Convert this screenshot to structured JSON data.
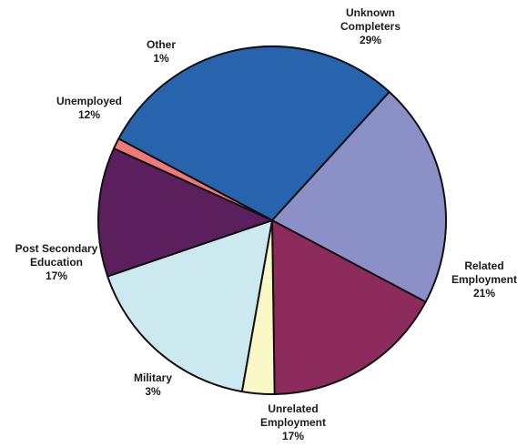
{
  "chart_data": {
    "type": "pie",
    "title": "",
    "slices": [
      {
        "label_lines": [
          "Unknown",
          "Completers"
        ],
        "pct_label": "29%",
        "value": 29,
        "color": "#2863ad"
      },
      {
        "label_lines": [
          "Related",
          "Employment"
        ],
        "pct_label": "21%",
        "value": 21,
        "color": "#8b91c7"
      },
      {
        "label_lines": [
          "Unrelated",
          "Employment"
        ],
        "pct_label": "17%",
        "value": 17,
        "color": "#8e2b5d"
      },
      {
        "label_lines": [
          "Military"
        ],
        "pct_label": "3%",
        "value": 3,
        "color": "#fbf8c8"
      },
      {
        "label_lines": [
          "Post Secondary",
          "Education"
        ],
        "pct_label": "17%",
        "value": 17,
        "color": "#cde9f0"
      },
      {
        "label_lines": [
          "Unemployed"
        ],
        "pct_label": "12%",
        "value": 12,
        "color": "#5a1f5c"
      },
      {
        "label_lines": [
          "Other"
        ],
        "pct_label": "1%",
        "value": 1,
        "color": "#f07a7a"
      }
    ]
  }
}
